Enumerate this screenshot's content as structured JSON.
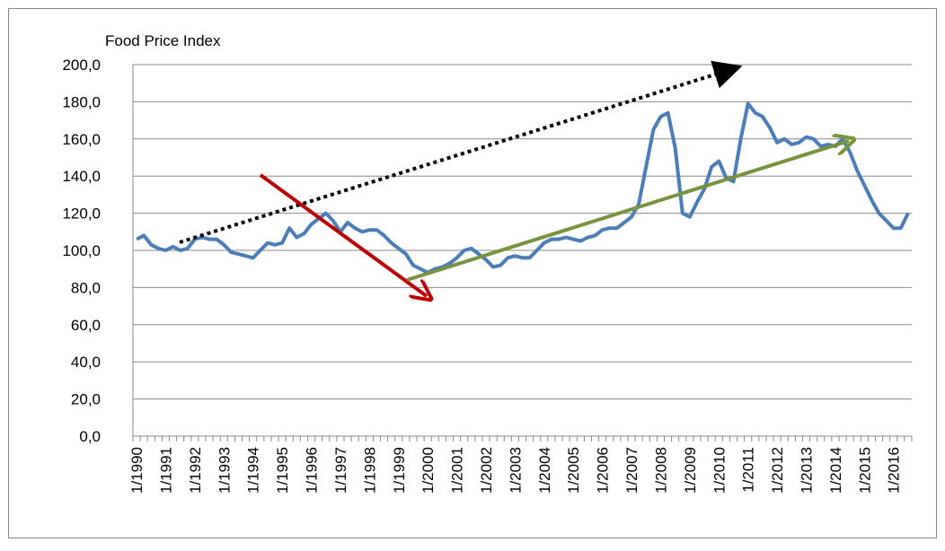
{
  "chart_data": {
    "type": "line",
    "y_label": "Food Price Index",
    "categories": [
      "1/1990",
      null,
      null,
      null,
      "1/1991",
      null,
      null,
      null,
      "1/1992",
      null,
      null,
      null,
      "1/1993",
      null,
      null,
      null,
      "1/1994",
      null,
      null,
      null,
      "1/1995",
      null,
      null,
      null,
      "1/1996",
      null,
      null,
      null,
      "1/1997",
      null,
      null,
      null,
      "1/1998",
      null,
      null,
      null,
      "1/1999",
      null,
      null,
      null,
      "1/2000",
      null,
      null,
      null,
      "1/2001",
      null,
      null,
      null,
      "1/2002",
      null,
      null,
      null,
      "1/2003",
      null,
      null,
      null,
      "1/2004",
      null,
      null,
      null,
      "1/2005",
      null,
      null,
      null,
      "1/2006",
      null,
      null,
      null,
      "1/2007",
      null,
      null,
      null,
      "1/2008",
      null,
      null,
      null,
      "1/2009",
      null,
      null,
      null,
      "1/2010",
      null,
      null,
      null,
      "1/2011",
      null,
      null,
      null,
      "1/2012",
      null,
      null,
      null,
      "1/2013",
      null,
      null,
      null,
      "1/2014",
      null,
      null,
      null,
      "1/2015",
      null,
      null,
      null,
      "1/2016",
      null,
      null
    ],
    "series": [
      {
        "color": "#4a7ebb",
        "values": [
          106,
          108,
          103,
          101,
          100,
          102,
          100,
          101,
          106,
          107,
          106,
          106,
          103,
          99,
          98,
          97,
          96,
          100,
          104,
          103,
          104,
          112,
          107,
          109,
          114,
          117,
          120,
          116,
          110,
          115,
          112,
          110,
          111,
          111,
          108,
          104,
          101,
          98,
          92,
          90,
          88,
          90,
          91,
          93,
          96,
          100,
          101,
          98,
          95,
          91,
          92,
          96,
          97,
          96,
          96,
          100,
          104,
          106,
          106,
          107,
          106,
          105,
          107,
          108,
          111,
          112,
          112,
          115,
          118,
          125,
          145,
          165,
          172,
          174,
          155,
          120,
          118,
          126,
          133,
          145,
          148,
          139,
          137,
          160,
          179,
          174,
          172,
          166,
          158,
          160,
          157,
          158,
          161,
          160,
          156,
          157,
          156,
          160,
          153,
          143,
          135,
          127,
          120,
          116,
          112,
          112,
          120
        ]
      }
    ],
    "ylim": [
      0,
      200
    ],
    "yticks": [
      {
        "value": 0,
        "label": "0,0"
      },
      {
        "value": 20,
        "label": "20,0"
      },
      {
        "value": 40,
        "label": "40,0"
      },
      {
        "value": 60,
        "label": "60,0"
      },
      {
        "value": 80,
        "label": "80,0"
      },
      {
        "value": 100,
        "label": "100,0"
      },
      {
        "value": 120,
        "label": "120,0"
      },
      {
        "value": 140,
        "label": "140,0"
      },
      {
        "value": 160,
        "label": "160,0"
      },
      {
        "value": 180,
        "label": "180,0"
      },
      {
        "value": 200,
        "label": "200,0"
      }
    ],
    "grid": true
  }
}
